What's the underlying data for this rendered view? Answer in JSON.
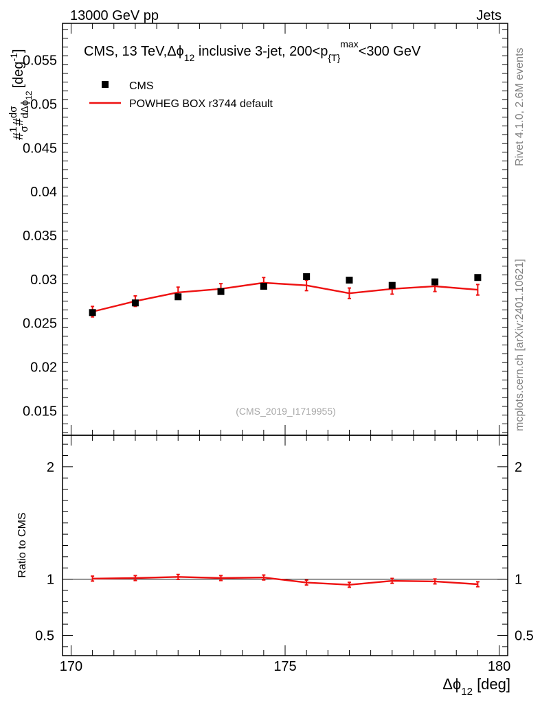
{
  "header": {
    "left": "13000 GeV pp",
    "right": "Jets"
  },
  "side_labels": {
    "rivet": "Rivet 4.1.0,  2.6M events",
    "mcplots": "mcplots.cern.ch [arXiv:2401.10621]"
  },
  "chart_data": {
    "type": "scatter",
    "title": {
      "prefix": "CMS, 13 TeV,",
      "phi_base": "Δϕ",
      "phi_sub": "12",
      "middle": " inclusive 3-jet, 200<p",
      "p_sub": "{T}",
      "p_sup": "max",
      "suffix": "<300 GeV"
    },
    "ylabel_main": {
      "hash1": "#",
      "frac1_num": "1",
      "frac1_den": "σ",
      "hash2": "#",
      "frac2_num": "dσ",
      "frac2_den": "dΔϕ",
      "frac2_den_sub": "12",
      "unit": "[deg",
      "unit_sup": "-1",
      "unit_close": "]"
    },
    "ylabel_ratio": "Ratio to CMS",
    "xlabel": {
      "base": "Δϕ",
      "sub": "12",
      "unit": " [deg]"
    },
    "watermark": "(CMS_2019_I1719955)",
    "xlim": [
      169.8,
      180.2
    ],
    "ylim_main": [
      0.0122,
      0.0592
    ],
    "ylim_ratio": [
      0.32,
      2.28
    ],
    "x_ticks": [
      170,
      175,
      180
    ],
    "x_tick_labels": [
      "170",
      "175",
      "180"
    ],
    "y_ticks_main": [
      0.015,
      0.02,
      0.025,
      0.03,
      0.035,
      0.04,
      0.045,
      0.05,
      0.055
    ],
    "y_tick_labels_main": [
      "0.015",
      "0.02",
      "0.025",
      "0.03",
      "0.035",
      "0.04",
      "0.045",
      "0.05",
      "0.055"
    ],
    "y_ticks_ratio": [
      0.5,
      1,
      2
    ],
    "y_tick_labels_ratio": [
      "0.5",
      "1",
      "2"
    ],
    "legend": [
      {
        "name": "CMS",
        "style": "marker",
        "color": "#000000"
      },
      {
        "name": "POWHEG BOX r3744 default",
        "style": "line",
        "color": "#ee1111"
      }
    ],
    "series": [
      {
        "name": "CMS",
        "x": [
          170.5,
          171.5,
          172.5,
          173.5,
          174.5,
          175.5,
          176.5,
          177.5,
          178.5,
          179.5
        ],
        "values": [
          0.0262,
          0.0273,
          0.028,
          0.0286,
          0.0292,
          0.0303,
          0.0299,
          0.0293,
          0.0297,
          0.0302
        ]
      },
      {
        "name": "POWHEG BOX r3744 default",
        "x": [
          170.5,
          171.5,
          172.5,
          173.5,
          174.5,
          175.5,
          176.5,
          177.5,
          178.5,
          179.5
        ],
        "values": [
          0.0263,
          0.0275,
          0.0285,
          0.0289,
          0.0296,
          0.0293,
          0.0284,
          0.0289,
          0.0292,
          0.0288
        ],
        "errors": [
          0.0006,
          0.0006,
          0.0006,
          0.0006,
          0.0006,
          0.0006,
          0.0006,
          0.0006,
          0.0006,
          0.0006
        ],
        "ratio": [
          1.005,
          1.01,
          1.02,
          1.01,
          1.015,
          0.97,
          0.95,
          0.985,
          0.98,
          0.955
        ],
        "ratio_errors": [
          0.022,
          0.022,
          0.022,
          0.022,
          0.022,
          0.022,
          0.022,
          0.022,
          0.022,
          0.022
        ]
      }
    ]
  }
}
